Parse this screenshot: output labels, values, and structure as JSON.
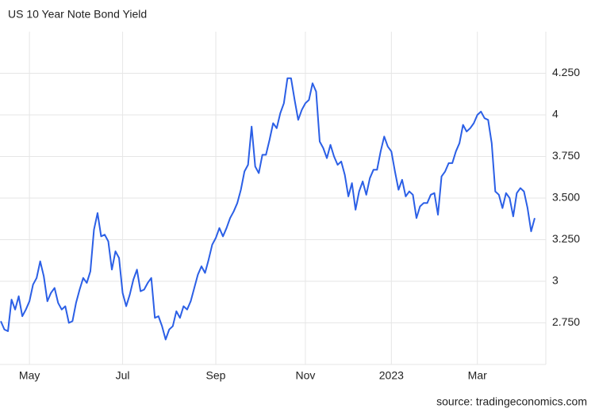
{
  "chart_data": {
    "type": "line",
    "title": "US 10 Year Note Bond Yield",
    "source": "source: tradingeconomics.com",
    "color": "#2b5fe6",
    "grid": true,
    "ylim": [
      2.5,
      4.5
    ],
    "yticks": [
      {
        "value": 2.75,
        "label": "2.750"
      },
      3,
      {
        "value": 3.25,
        "label": "3.250"
      },
      {
        "value": 3.5,
        "label": "3.500"
      },
      {
        "value": 3.75,
        "label": "3.750"
      },
      4,
      {
        "value": 4.25,
        "label": "4.250"
      }
    ],
    "categories": [
      null,
      null,
      null,
      null,
      null,
      null,
      null,
      null,
      "May",
      null,
      null,
      null,
      null,
      null,
      null,
      null,
      null,
      null,
      null,
      null,
      null,
      null,
      null,
      null,
      null,
      null,
      null,
      null,
      null,
      null,
      null,
      null,
      null,
      null,
      "Jul",
      null,
      null,
      null,
      null,
      null,
      null,
      null,
      null,
      null,
      null,
      null,
      null,
      null,
      null,
      null,
      null,
      null,
      null,
      null,
      null,
      null,
      null,
      null,
      null,
      null,
      "Sep",
      null,
      null,
      null,
      null,
      null,
      null,
      null,
      null,
      null,
      null,
      null,
      null,
      null,
      null,
      null,
      null,
      null,
      null,
      null,
      null,
      null,
      null,
      null,
      null,
      "Nov",
      null,
      null,
      null,
      null,
      null,
      null,
      null,
      null,
      null,
      null,
      null,
      null,
      null,
      null,
      null,
      null,
      null,
      null,
      null,
      null,
      null,
      null,
      null,
      "2023",
      null,
      null,
      null,
      null,
      null,
      null,
      null,
      null,
      null,
      null,
      null,
      null,
      null,
      null,
      null,
      null,
      null,
      null,
      null,
      null,
      null,
      null,
      null,
      "Mar",
      null,
      null,
      null,
      null,
      null,
      null,
      null,
      null,
      null,
      null,
      null,
      null,
      null,
      null,
      null,
      null
    ],
    "values": [
      2.76,
      2.71,
      2.7,
      2.89,
      2.83,
      2.91,
      2.79,
      2.83,
      2.88,
      2.98,
      3.02,
      3.12,
      3.03,
      2.88,
      2.93,
      2.96,
      2.87,
      2.83,
      2.85,
      2.75,
      2.76,
      2.87,
      2.95,
      3.02,
      2.99,
      3.06,
      3.31,
      3.41,
      3.27,
      3.28,
      3.24,
      3.07,
      3.18,
      3.14,
      2.93,
      2.85,
      2.92,
      3.01,
      3.07,
      2.94,
      2.95,
      2.99,
      3.02,
      2.78,
      2.79,
      2.73,
      2.65,
      2.71,
      2.73,
      2.82,
      2.78,
      2.85,
      2.83,
      2.88,
      2.96,
      3.04,
      3.09,
      3.05,
      3.13,
      3.22,
      3.26,
      3.32,
      3.27,
      3.32,
      3.38,
      3.42,
      3.47,
      3.55,
      3.66,
      3.7,
      3.93,
      3.69,
      3.65,
      3.76,
      3.76,
      3.85,
      3.95,
      3.92,
      4.01,
      4.07,
      4.22,
      4.22,
      4.09,
      3.97,
      4.03,
      4.07,
      4.09,
      4.19,
      4.14,
      3.84,
      3.8,
      3.74,
      3.82,
      3.75,
      3.7,
      3.72,
      3.64,
      3.51,
      3.59,
      3.43,
      3.54,
      3.6,
      3.52,
      3.62,
      3.67,
      3.67,
      3.78,
      3.87,
      3.81,
      3.78,
      3.66,
      3.55,
      3.61,
      3.51,
      3.54,
      3.52,
      3.38,
      3.45,
      3.47,
      3.47,
      3.52,
      3.53,
      3.4,
      3.63,
      3.66,
      3.71,
      3.71,
      3.78,
      3.83,
      3.94,
      3.9,
      3.92,
      3.95,
      4.0,
      4.02,
      3.98,
      3.97,
      3.83,
      3.54,
      3.52,
      3.44,
      3.53,
      3.5,
      3.39,
      3.53,
      3.56,
      3.54,
      3.44,
      3.3,
      3.38
    ]
  }
}
